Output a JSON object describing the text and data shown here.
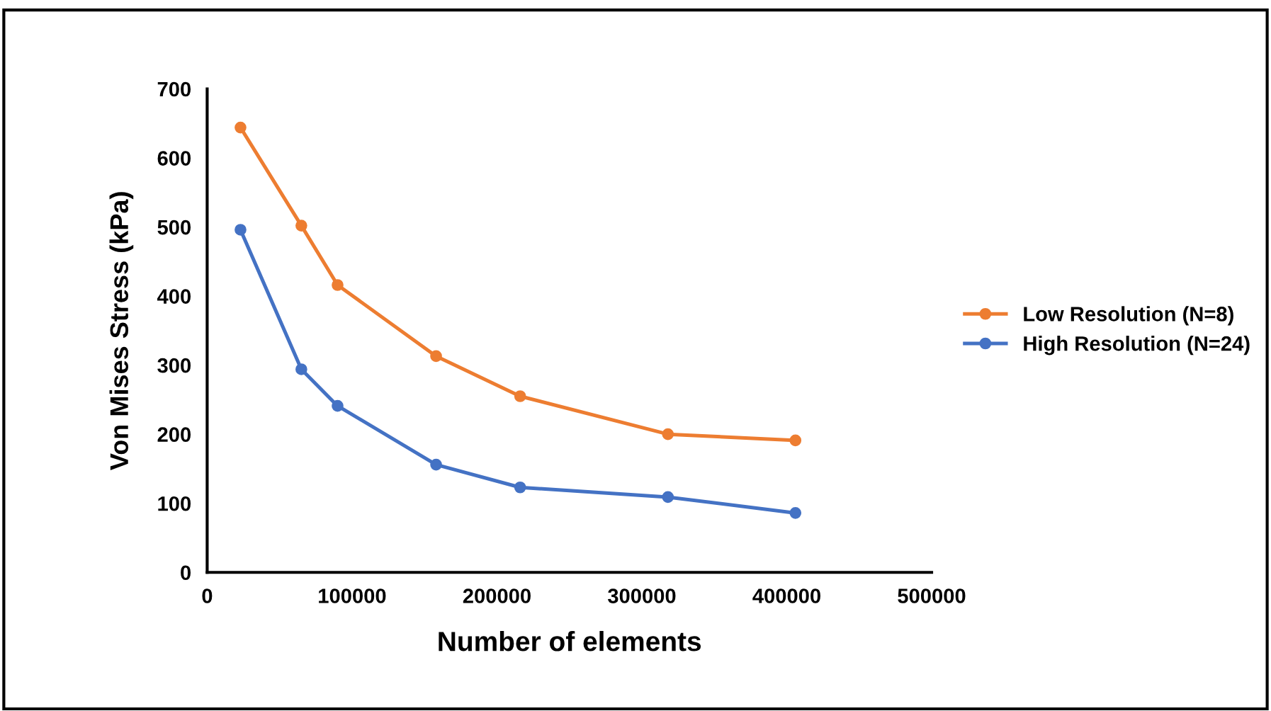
{
  "chart_data": {
    "type": "line",
    "xlabel": "Number of elements",
    "ylabel": "Von Mises Stress (kPa)",
    "xlim": [
      0,
      500000
    ],
    "xticks": [
      0,
      100000,
      200000,
      300000,
      400000,
      500000
    ],
    "ylim": [
      0,
      700
    ],
    "yticks": [
      0,
      100,
      200,
      300,
      400,
      500,
      600,
      700
    ],
    "grid": false,
    "legend": "right",
    "marker": "circle",
    "line_style": "solid",
    "series": [
      {
        "name": "Low Resolution (N=8)",
        "color": "#ed7d31",
        "x": [
          23000,
          65000,
          90000,
          158000,
          216000,
          318000,
          406000
        ],
        "values": [
          644,
          502,
          416,
          313,
          255,
          200,
          191
        ]
      },
      {
        "name": "High Resolution (N=24)",
        "color": "#4472c4",
        "x": [
          23000,
          65000,
          90000,
          158000,
          216000,
          318000,
          406000
        ],
        "values": [
          496,
          294,
          241,
          156,
          123,
          109,
          86
        ]
      }
    ]
  }
}
